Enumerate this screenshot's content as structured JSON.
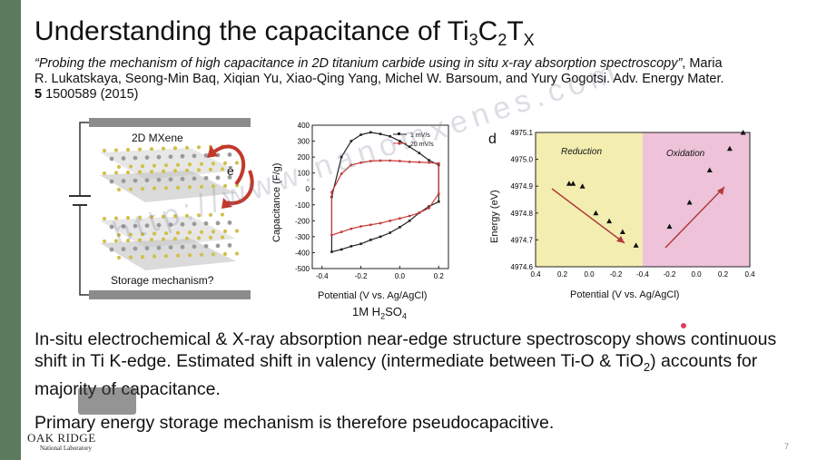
{
  "slide": {
    "title_main": "Understanding the capacitance of Ti",
    "title_sub1": "3",
    "title_c": "C",
    "title_sub2": "2",
    "title_t": "T",
    "title_sub3": "X",
    "citation_italic": "“Probing the mechanism of high capacitance in 2D titanium carbide using in situ x-ray absorption spectroscopy”",
    "citation_rest": ", Maria R. Lukatskaya, Seong-Min Baq, Xiqian Yu, Xiao-Qing Yang, Michel W. Barsoum, and Yury Gogotsi. Adv. Energy Mater. ",
    "citation_vol": "5",
    "citation_end": " 1500589 (2015)",
    "bullet1_a": "In-situ electrochemical & X-ray absorption near-edge structure spectroscopy shows continuous shift in Ti K-edge. Estimated shift in valency (intermediate between Ti-O & TiO",
    "bullet1_sub": "2",
    "bullet1_b": ") accounts  for majority of capacitance.",
    "bullet2": "Primary energy storage mechanism is therefore pseudocapacitive.",
    "logo_name": "OAK RIDGE",
    "logo_sub": "National Laboratory",
    "slide_number": "7",
    "watermark": "http://www.nanomxenes.com"
  },
  "schematic": {
    "label_top": "2D MXene",
    "label_electron": "ē",
    "label_bottom": "Storage mechanism?"
  },
  "cv_chart": {
    "ylabel": "Capacitance (F/g)",
    "xlabel": "Potential (V vs. Ag/AgCl)",
    "yticks": [
      "400",
      "300",
      "200",
      "100",
      "0",
      "-100",
      "-200",
      "-300",
      "-400",
      "-500"
    ],
    "xticks": [
      "-0.4",
      "-0.2",
      "0.0",
      "0.2"
    ],
    "legend1": "1 mV/s",
    "legend2": "20 mV/s",
    "solution_main": "1M H",
    "solution_sub": "2",
    "solution_end": "SO",
    "solution_sub2": "4"
  },
  "energy_chart": {
    "panel_letter": "d",
    "ylabel": "Energy (eV)",
    "xlabel": "Potential (V vs. Ag/AgCl)",
    "region1": "Reduction",
    "region2": "Oxidation",
    "yticks": [
      "4975.1",
      "4975.0",
      "4974.9",
      "4974.8",
      "4974.7",
      "4974.6"
    ],
    "xticks_left": [
      "0.4",
      "0.2",
      "0.0",
      "-0.2",
      "-0.4"
    ],
    "xticks_right": [
      "-0.2",
      "0.0",
      "0.2",
      "0.4"
    ],
    "colors": {
      "reduction_bg": "#f3eeb0",
      "oxidation_bg": "#eec3d9",
      "arrow": "#b23a3a"
    }
  },
  "chart_data": [
    {
      "type": "line",
      "xlabel": "Potential (V vs. Ag/AgCl)",
      "ylabel": "Capacitance (F/g)",
      "xlim": [
        -0.45,
        0.25
      ],
      "ylim": [
        -500,
        400
      ],
      "series": [
        {
          "name": "1 mV/s",
          "x": [
            -0.35,
            -0.3,
            -0.25,
            -0.2,
            -0.15,
            -0.1,
            -0.05,
            0.0,
            0.05,
            0.1,
            0.15,
            0.2,
            0.2,
            0.15,
            0.1,
            0.05,
            0.0,
            -0.05,
            -0.1,
            -0.15,
            -0.2,
            -0.25,
            -0.3,
            -0.35
          ],
          "y": [
            -50,
            200,
            300,
            340,
            355,
            345,
            330,
            300,
            265,
            225,
            180,
            150,
            -80,
            -110,
            -150,
            -200,
            -240,
            -275,
            -300,
            -320,
            -345,
            -360,
            -380,
            -395
          ]
        },
        {
          "name": "20 mV/s",
          "x": [
            -0.35,
            -0.3,
            -0.25,
            -0.2,
            -0.15,
            -0.1,
            -0.05,
            0.0,
            0.05,
            0.1,
            0.15,
            0.2,
            0.2,
            0.15,
            0.1,
            0.05,
            0.0,
            -0.05,
            -0.1,
            -0.15,
            -0.2,
            -0.25,
            -0.3,
            -0.35
          ],
          "y": [
            -20,
            95,
            150,
            165,
            175,
            178,
            178,
            175,
            170,
            168,
            165,
            160,
            -30,
            -120,
            -150,
            -170,
            -185,
            -200,
            -215,
            -225,
            -235,
            -250,
            -270,
            -290
          ]
        }
      ]
    },
    {
      "type": "scatter",
      "xlabel": "Potential (V vs. Ag/AgCl)",
      "ylabel": "Energy (eV)",
      "ylim": [
        4974.6,
        4975.1
      ],
      "series": [
        {
          "name": "Reduction",
          "x": [
            0.15,
            0.12,
            0.05,
            -0.05,
            -0.15,
            -0.25,
            -0.35
          ],
          "y": [
            4974.91,
            4974.91,
            4974.9,
            4974.8,
            4974.77,
            4974.73,
            4974.68
          ]
        },
        {
          "name": "Oxidation",
          "x": [
            -0.2,
            -0.05,
            0.1,
            0.25,
            0.35
          ],
          "y": [
            4974.75,
            4974.84,
            4974.96,
            4975.04,
            4975.1
          ]
        }
      ]
    }
  ]
}
